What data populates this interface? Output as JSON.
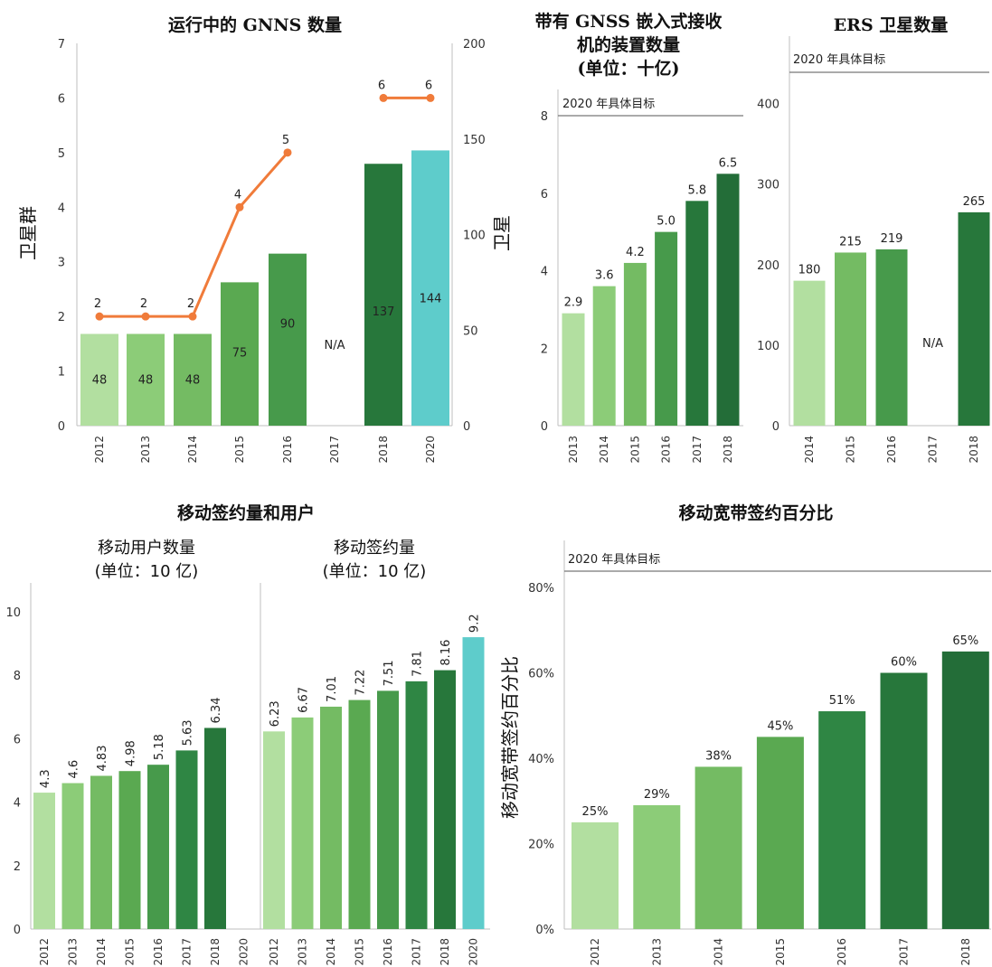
{
  "palette": {
    "g1": "#b2dfa0",
    "g2": "#8ccc78",
    "g3": "#74bb63",
    "g4": "#5aa951",
    "g5": "#479a4b",
    "g6": "#2f8644",
    "g7": "#27773b",
    "g8": "#236d38",
    "teal": "#5ecccb",
    "line": "#f07b3a",
    "target_line": "#777777"
  },
  "chart_data": [
    {
      "id": "gnss",
      "type": "bar",
      "title": "运行中的 GNNS 数量",
      "ylabel": "卫星群",
      "y2label": "卫星",
      "categories": [
        "2012",
        "2013",
        "2014",
        "2015",
        "2016",
        "2017",
        "2018",
        "2020"
      ],
      "ylim": [
        0,
        7
      ],
      "y2lim": [
        0,
        200
      ],
      "yticks": [
        "0",
        "1",
        "2",
        "3",
        "4",
        "5",
        "6",
        "7"
      ],
      "y2ticks": [
        "0",
        "50",
        "100",
        "150",
        "200"
      ],
      "series": [
        {
          "name": "卫星",
          "type": "bar",
          "axis": "right",
          "values": [
            48,
            48,
            48,
            75,
            90,
            null,
            137,
            144
          ],
          "labels": [
            "48",
            "48",
            "48",
            "75",
            "90",
            "N/A",
            "137",
            "144"
          ]
        },
        {
          "name": "卫星群",
          "type": "line",
          "axis": "left",
          "values": [
            2,
            2,
            2,
            4,
            5,
            null,
            6,
            6
          ],
          "labels": [
            "2",
            "2",
            "2",
            "4",
            "5",
            "",
            "6",
            "6"
          ]
        }
      ]
    },
    {
      "id": "receivers",
      "type": "bar",
      "title": [
        "带有 GNSS 嵌入式接收",
        "机的装置数量",
        "(单位：十亿)"
      ],
      "categories": [
        "2013",
        "2014",
        "2015",
        "2016",
        "2017",
        "2018"
      ],
      "ylim": [
        0,
        8
      ],
      "yticks": [
        "0",
        "2",
        "4",
        "6",
        "8"
      ],
      "target_label": "2020 年具体目标",
      "values": [
        2.9,
        3.6,
        4.2,
        5.0,
        5.8,
        6.5
      ],
      "labels": [
        "2.9",
        "3.6",
        "4.2",
        "5.0",
        "5.8",
        "6.5"
      ]
    },
    {
      "id": "ers",
      "type": "bar",
      "title": "ERS 卫星数量",
      "categories": [
        "2014",
        "2015",
        "2016",
        "2017",
        "2018"
      ],
      "ylim": [
        0,
        400
      ],
      "yticks": [
        "0",
        "100",
        "200",
        "300",
        "400"
      ],
      "target_label": "2020 年具体目标",
      "values": [
        180,
        215,
        219,
        null,
        265
      ],
      "labels": [
        "180",
        "215",
        "219",
        "N/A",
        "265"
      ]
    },
    {
      "id": "mobile",
      "type": "bar",
      "title": "移动签约量和用户",
      "ylim": [
        0,
        10
      ],
      "yticks": [
        "0",
        "2",
        "4",
        "6",
        "8",
        "10"
      ],
      "panels": [
        {
          "subtitle": [
            "移动用户数量",
            "(单位：10 亿)"
          ],
          "categories": [
            "2012",
            "2013",
            "2014",
            "2015",
            "2016",
            "2017",
            "2018",
            "2020"
          ],
          "values": [
            4.3,
            4.6,
            4.83,
            4.98,
            5.18,
            5.63,
            6.34,
            null
          ],
          "labels": [
            "4.3",
            "4.6",
            "4.83",
            "4.98",
            "5.18",
            "5.63",
            "6.34",
            ""
          ]
        },
        {
          "subtitle": [
            "移动签约量",
            "(单位：10 亿)"
          ],
          "categories": [
            "2012",
            "2013",
            "2014",
            "2015",
            "2016",
            "2017",
            "2018",
            "2020"
          ],
          "values": [
            6.23,
            6.67,
            7.01,
            7.22,
            7.51,
            7.81,
            8.16,
            9.2
          ],
          "labels": [
            "6.23",
            "6.67",
            "7.01",
            "7.22",
            "7.51",
            "7.81",
            "8.16",
            "9.2"
          ]
        }
      ]
    },
    {
      "id": "broadband",
      "type": "bar",
      "title": "移动宽带签约百分比",
      "ylabel": "移动宽带签约百分比",
      "categories": [
        "2012",
        "2013",
        "2014",
        "2015",
        "2016",
        "2017",
        "2018"
      ],
      "ylim": [
        0,
        80
      ],
      "yticks": [
        "0%",
        "20%",
        "40%",
        "60%",
        "80%"
      ],
      "target_label": "2020 年具体目标",
      "values": [
        25,
        29,
        38,
        45,
        51,
        60,
        65
      ],
      "labels": [
        "25%",
        "29%",
        "38%",
        "45%",
        "51%",
        "60%",
        "65%"
      ]
    }
  ]
}
